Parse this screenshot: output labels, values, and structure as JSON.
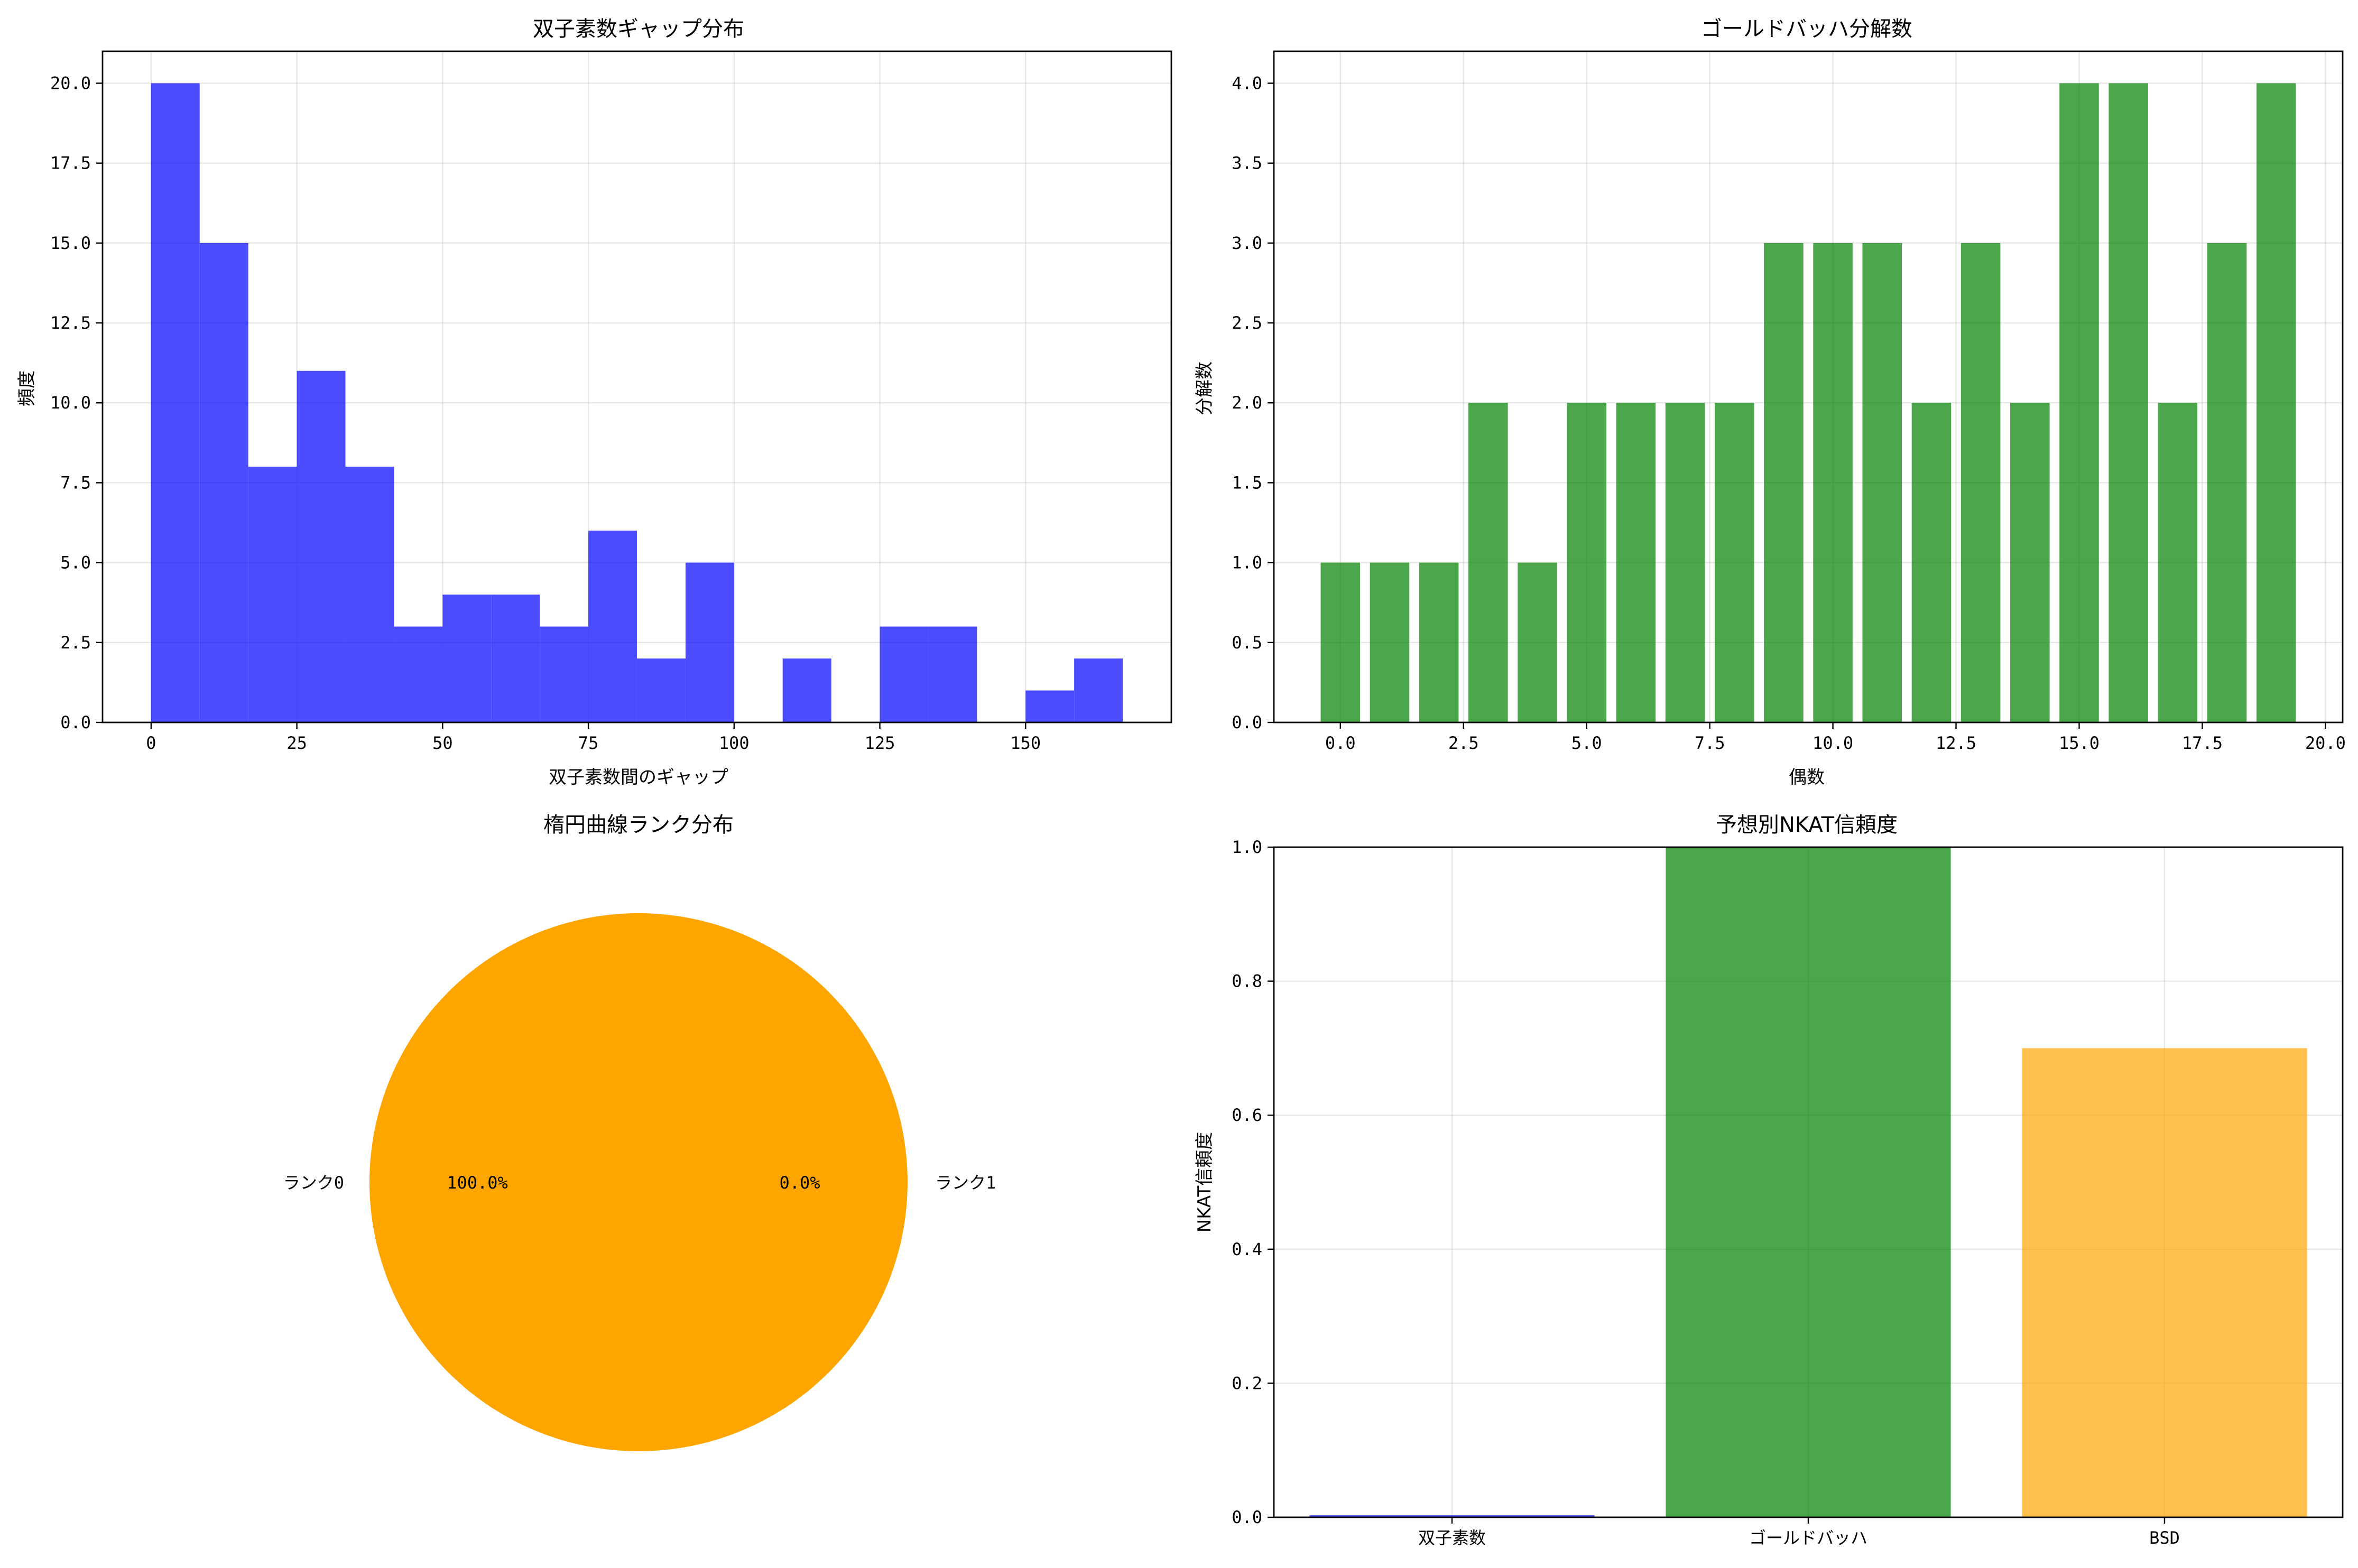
{
  "chart_data": [
    {
      "type": "bar",
      "subtype": "histogram",
      "title": "双子素数ギャップ分布",
      "xlabel": "双子素数間のギャップ",
      "ylabel": "頻度",
      "color": "#0000ff",
      "alpha": 0.7,
      "bin_edges": [
        0,
        8.33,
        16.67,
        25,
        33.33,
        41.67,
        50,
        58.33,
        66.67,
        75,
        83.33,
        91.67,
        100,
        108.33,
        116.67,
        125,
        133.33,
        141.67,
        150,
        158.33,
        166.67
      ],
      "values": [
        20,
        15,
        8,
        11,
        8,
        3,
        4,
        4,
        3,
        6,
        2,
        5,
        0,
        2,
        0,
        3,
        3,
        0,
        1,
        2
      ],
      "xlim": [
        -8.33,
        175
      ],
      "ylim": [
        0,
        21
      ],
      "xticks": [
        0,
        25,
        50,
        75,
        100,
        125,
        150
      ],
      "xtick_labels": [
        "0",
        "25",
        "50",
        "75",
        "100",
        "125",
        "150"
      ],
      "yticks": [
        0,
        2.5,
        5,
        7.5,
        10,
        12.5,
        15,
        17.5,
        20
      ],
      "ytick_labels": [
        "0.0",
        "2.5",
        "5.0",
        "7.5",
        "10.0",
        "12.5",
        "15.0",
        "17.5",
        "20.0"
      ],
      "grid": true
    },
    {
      "type": "bar",
      "title": "ゴールドバッハ分解数",
      "xlabel": "偶数",
      "ylabel": "分解数",
      "color": "#008000",
      "alpha": 0.7,
      "x": [
        0,
        1,
        2,
        3,
        4,
        5,
        6,
        7,
        8,
        9,
        10,
        11,
        12,
        13,
        14,
        15,
        16,
        17,
        18,
        19
      ],
      "values": [
        1,
        1,
        1,
        2,
        1,
        2,
        2,
        2,
        2,
        3,
        3,
        3,
        2,
        3,
        2,
        4,
        4,
        2,
        3,
        4
      ],
      "bar_width": 0.8,
      "xlim": [
        -1.35,
        20.35
      ],
      "ylim": [
        0,
        4.2
      ],
      "xticks": [
        0,
        2.5,
        5,
        7.5,
        10,
        12.5,
        15,
        17.5,
        20
      ],
      "xtick_labels": [
        "0.0",
        "2.5",
        "5.0",
        "7.5",
        "10.0",
        "12.5",
        "15.0",
        "17.5",
        "20.0"
      ],
      "yticks": [
        0,
        0.5,
        1,
        1.5,
        2,
        2.5,
        3,
        3.5,
        4
      ],
      "ytick_labels": [
        "0.0",
        "0.5",
        "1.0",
        "1.5",
        "2.0",
        "2.5",
        "3.0",
        "3.5",
        "4.0"
      ],
      "grid": true
    },
    {
      "type": "pie",
      "title": "楕円曲線ランク分布",
      "labels": [
        "ランク0",
        "ランク1"
      ],
      "values": [
        100,
        0
      ],
      "autopct": [
        "100.0%",
        "0.0%"
      ],
      "colors": [
        "#ffa500",
        "#ffa500"
      ]
    },
    {
      "type": "bar",
      "title": "予想別NKAT信頼度",
      "xlabel": "",
      "ylabel": "NKAT信頼度",
      "categories": [
        "双子素数",
        "ゴールドバッハ",
        "BSD"
      ],
      "values": [
        0.003,
        1.0,
        0.7
      ],
      "colors": [
        "#0000ff",
        "#008000",
        "#ffa500"
      ],
      "alpha": 0.7,
      "ylim": [
        0,
        1
      ],
      "yticks": [
        0,
        0.2,
        0.4,
        0.6,
        0.8,
        1.0
      ],
      "ytick_labels": [
        "0.0",
        "0.2",
        "0.4",
        "0.6",
        "0.8",
        "1.0"
      ],
      "grid": true
    }
  ]
}
